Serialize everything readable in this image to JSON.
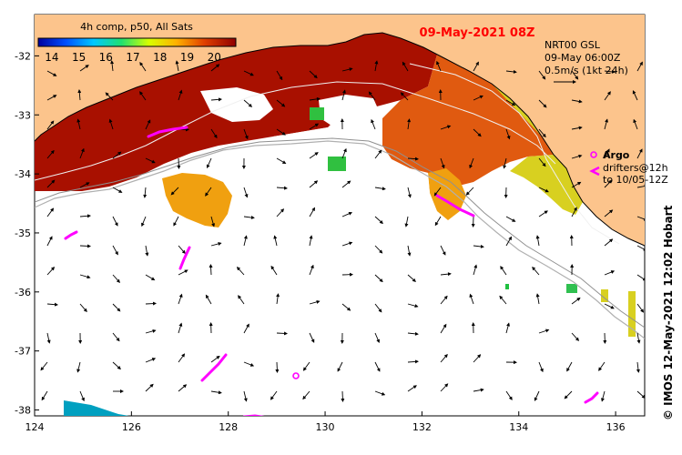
{
  "map": {
    "date_title": "09-May-2021 08Z",
    "product_label": "4h comp, p50, All Sats",
    "colorbar_ticks": [
      "14",
      "15",
      "16",
      "17",
      "18",
      "19",
      "20"
    ],
    "colorbar_range": [
      13.5,
      20.8
    ],
    "vector_legend": {
      "line1": "NRT00 GSL",
      "line2": "09-May 06:00Z",
      "line3": "0.5m/s (1kt 24h)"
    },
    "argo_label": "Argo",
    "drifter_label_line1": "drifters@12h",
    "drifter_label_line2": "to 10/05-12Z",
    "credit_vertical": "© IMOS 12-May-2021 12:02 Hobart",
    "lon_ticks": [
      124,
      126,
      128,
      130,
      132,
      134,
      136
    ],
    "lat_ticks": [
      -32,
      -33,
      -34,
      -35,
      -36,
      -37,
      -38
    ],
    "lon_range": [
      124,
      136.6
    ],
    "lat_range": [
      -38.1,
      -31.3
    ],
    "colors": {
      "land": "#fcc48c",
      "sst_warm": "#a81000",
      "sst_mid": "#e05a10",
      "sst_cool": "#f0a010",
      "sst_cooler": "#d8d020",
      "argo": "#ff00ff",
      "drifter": "#ff00ff",
      "title": "#ff0000",
      "depth_contour": "#b0b0b0"
    }
  }
}
